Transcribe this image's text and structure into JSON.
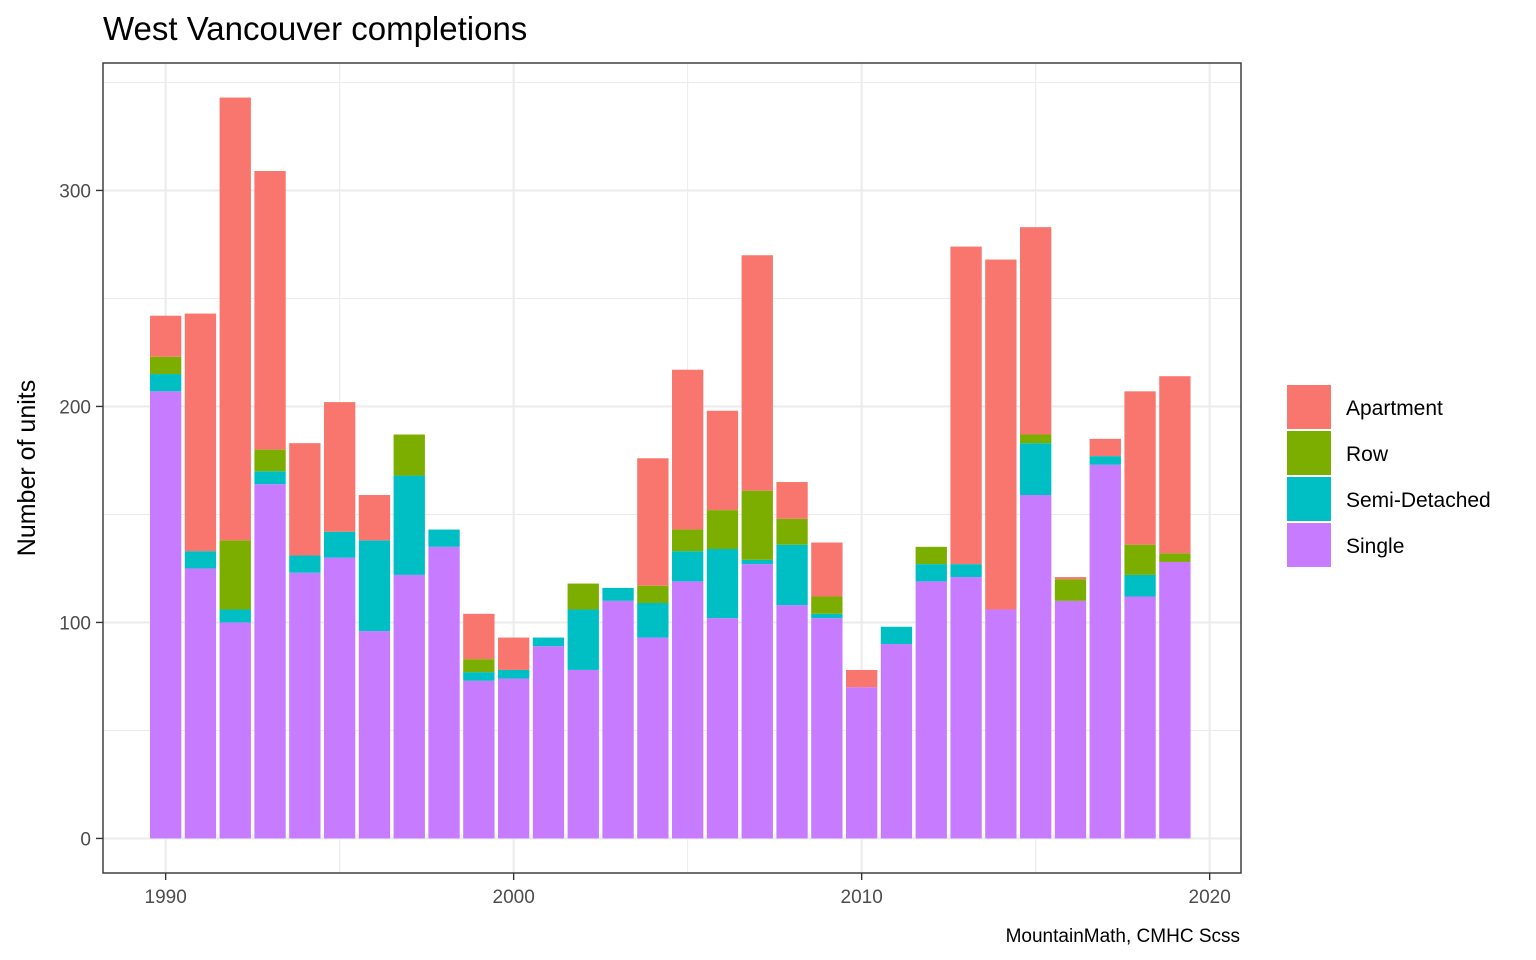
{
  "chart_data": {
    "type": "bar",
    "stacked": true,
    "title": "West Vancouver completions",
    "xlabel": "",
    "ylabel": "Number of units",
    "caption": "MountainMath, CMHC Scss",
    "x": [
      1990,
      1991,
      1992,
      1993,
      1994,
      1995,
      1996,
      1997,
      1998,
      1999,
      2000,
      2001,
      2002,
      2003,
      2004,
      2005,
      2006,
      2007,
      2008,
      2009,
      2010,
      2011,
      2012,
      2013,
      2014,
      2015,
      2016,
      2017,
      2018,
      2019
    ],
    "xlim": [
      1988.2,
      2020.9
    ],
    "ylim": [
      -16,
      359
    ],
    "x_ticks": [
      1990,
      2000,
      2010,
      2020
    ],
    "x_tick_labels": [
      "1990",
      "2000",
      "2010",
      "2020"
    ],
    "y_ticks": [
      0,
      100,
      200,
      300
    ],
    "y_tick_labels": [
      "0",
      "100",
      "200",
      "300"
    ],
    "grid": true,
    "legend_position": "right",
    "series": [
      {
        "name": "Single",
        "color": "#C77CFF",
        "values": [
          207,
          125,
          100,
          164,
          123,
          130,
          96,
          122,
          135,
          73,
          74,
          89,
          78,
          110,
          93,
          119,
          102,
          127,
          108,
          102,
          70,
          90,
          119,
          121,
          106,
          159,
          110,
          173,
          112,
          128
        ]
      },
      {
        "name": "Semi-Detached",
        "color": "#00BFC4",
        "values": [
          8,
          8,
          6,
          6,
          8,
          12,
          42,
          46,
          8,
          4,
          4,
          4,
          28,
          6,
          16,
          14,
          32,
          2,
          28,
          2,
          0,
          8,
          8,
          6,
          0,
          24,
          0,
          4,
          10,
          0
        ]
      },
      {
        "name": "Row",
        "color": "#7CAE00",
        "values": [
          8,
          0,
          32,
          10,
          0,
          0,
          0,
          19,
          0,
          6,
          0,
          0,
          12,
          0,
          8,
          10,
          18,
          32,
          12,
          8,
          0,
          0,
          8,
          0,
          0,
          4,
          10,
          0,
          14,
          4
        ]
      },
      {
        "name": "Apartment",
        "color": "#F8766D",
        "values": [
          19,
          110,
          205,
          129,
          52,
          60,
          21,
          0,
          0,
          21,
          15,
          0,
          0,
          0,
          59,
          74,
          46,
          109,
          17,
          25,
          8,
          0,
          0,
          147,
          162,
          96,
          1,
          8,
          71,
          82
        ]
      }
    ],
    "legend": [
      {
        "name": "Apartment",
        "color": "#F8766D"
      },
      {
        "name": "Row",
        "color": "#7CAE00"
      },
      {
        "name": "Semi-Detached",
        "color": "#00BFC4"
      },
      {
        "name": "Single",
        "color": "#C77CFF"
      }
    ]
  }
}
